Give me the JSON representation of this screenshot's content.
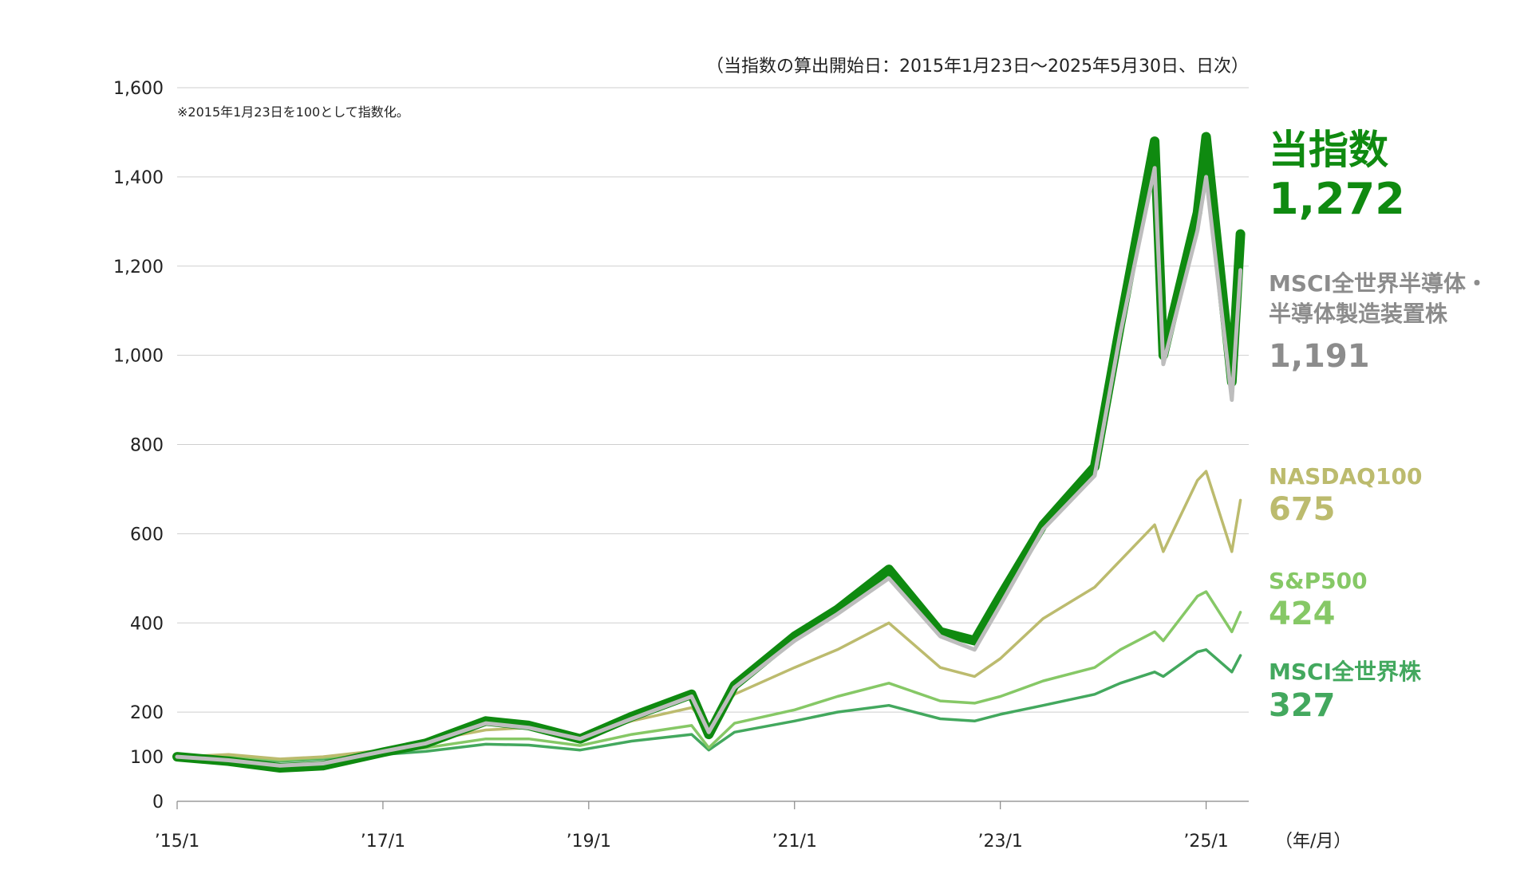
{
  "chart_data": {
    "type": "line",
    "period_note": "（当指数の算出開始日：2015年1月23日〜2025年5月30日、日次）",
    "base_note": "※2015年1月23日を100として指数化。",
    "x_unit": "（年/月）",
    "y_ticks": [
      "1,600",
      "1,400",
      "1,200",
      "1,000",
      "800",
      "600",
      "400",
      "200",
      "100",
      "0"
    ],
    "x_ticks": [
      "’15/1",
      "’17/1",
      "’19/1",
      "’21/1",
      "’23/1",
      "’25/1"
    ],
    "ylim": [
      0,
      1600
    ],
    "grid": true,
    "legend": "right",
    "colors": {
      "index": "#0f8a10",
      "semi": "#bdbdbd",
      "nasdaq": "#bcbb6e",
      "sp500": "#86c866",
      "acwi": "#43a85e",
      "semi_label": "#8c8c8c"
    },
    "series": [
      {
        "key": "index",
        "name": "当指数",
        "last_label": "1,272",
        "x": [
          "2015-01",
          "2015-07",
          "2016-01",
          "2016-06",
          "2017-01",
          "2017-06",
          "2018-01",
          "2018-06",
          "2018-12",
          "2019-06",
          "2020-01",
          "2020-03",
          "2020-06",
          "2021-01",
          "2021-06",
          "2021-12",
          "2022-06",
          "2022-10",
          "2023-01",
          "2023-06",
          "2023-12",
          "2024-03",
          "2024-07",
          "2024-08",
          "2024-12",
          "2025-01",
          "2025-04",
          "2025-05"
        ],
        "values": [
          100,
          90,
          75,
          80,
          110,
          130,
          180,
          170,
          140,
          190,
          240,
          150,
          260,
          370,
          430,
          520,
          380,
          360,
          460,
          620,
          750,
          1070,
          1480,
          1000,
          1320,
          1490,
          940,
          1272
        ]
      },
      {
        "key": "semi",
        "name": "MSCI全世界半導体・半導体製造装置株",
        "last_label": "1,191",
        "x": [
          "2015-01",
          "2015-07",
          "2016-01",
          "2016-06",
          "2017-01",
          "2017-06",
          "2018-01",
          "2018-06",
          "2018-12",
          "2019-06",
          "2020-01",
          "2020-03",
          "2020-06",
          "2021-01",
          "2021-06",
          "2021-12",
          "2022-06",
          "2022-10",
          "2023-01",
          "2023-06",
          "2023-12",
          "2024-03",
          "2024-07",
          "2024-08",
          "2024-12",
          "2025-01",
          "2025-04",
          "2025-05"
        ],
        "values": [
          100,
          92,
          80,
          85,
          112,
          130,
          175,
          165,
          140,
          185,
          235,
          155,
          255,
          360,
          420,
          500,
          370,
          340,
          440,
          610,
          730,
          1050,
          1420,
          980,
          1280,
          1400,
          900,
          1191
        ]
      },
      {
        "key": "nasdaq",
        "name": "NASDAQ100",
        "last_label": "675",
        "x": [
          "2015-01",
          "2015-07",
          "2016-01",
          "2016-06",
          "2017-01",
          "2017-06",
          "2018-01",
          "2018-06",
          "2018-12",
          "2019-06",
          "2020-01",
          "2020-03",
          "2020-06",
          "2021-01",
          "2021-06",
          "2021-12",
          "2022-06",
          "2022-10",
          "2023-01",
          "2023-06",
          "2023-12",
          "2024-03",
          "2024-07",
          "2024-08",
          "2024-12",
          "2025-01",
          "2025-04",
          "2025-05"
        ],
        "values": [
          100,
          105,
          95,
          100,
          115,
          135,
          160,
          165,
          145,
          180,
          210,
          170,
          240,
          300,
          340,
          400,
          300,
          280,
          320,
          410,
          480,
          540,
          620,
          560,
          720,
          740,
          560,
          675
        ]
      },
      {
        "key": "sp500",
        "name": "S&P500",
        "last_label": "424",
        "x": [
          "2015-01",
          "2015-07",
          "2016-01",
          "2016-06",
          "2017-01",
          "2017-06",
          "2018-01",
          "2018-06",
          "2018-12",
          "2019-06",
          "2020-01",
          "2020-03",
          "2020-06",
          "2021-01",
          "2021-06",
          "2021-12",
          "2022-06",
          "2022-10",
          "2023-01",
          "2023-06",
          "2023-12",
          "2024-03",
          "2024-07",
          "2024-08",
          "2024-12",
          "2025-01",
          "2025-04",
          "2025-05"
        ],
        "values": [
          100,
          102,
          92,
          98,
          110,
          120,
          140,
          140,
          125,
          150,
          170,
          120,
          175,
          205,
          235,
          265,
          225,
          220,
          235,
          270,
          300,
          340,
          380,
          360,
          460,
          470,
          380,
          424
        ]
      },
      {
        "key": "acwi",
        "name": "MSCI全世界株",
        "last_label": "327",
        "x": [
          "2015-01",
          "2015-07",
          "2016-01",
          "2016-06",
          "2017-01",
          "2017-06",
          "2018-01",
          "2018-06",
          "2018-12",
          "2019-06",
          "2020-01",
          "2020-03",
          "2020-06",
          "2021-01",
          "2021-06",
          "2021-12",
          "2022-06",
          "2022-10",
          "2023-01",
          "2023-06",
          "2023-12",
          "2024-03",
          "2024-07",
          "2024-08",
          "2024-12",
          "2025-01",
          "2025-04",
          "2025-05"
        ],
        "values": [
          100,
          98,
          90,
          95,
          105,
          112,
          128,
          126,
          115,
          135,
          150,
          115,
          155,
          180,
          200,
          215,
          185,
          180,
          195,
          215,
          240,
          265,
          290,
          280,
          335,
          340,
          290,
          327
        ]
      }
    ]
  }
}
